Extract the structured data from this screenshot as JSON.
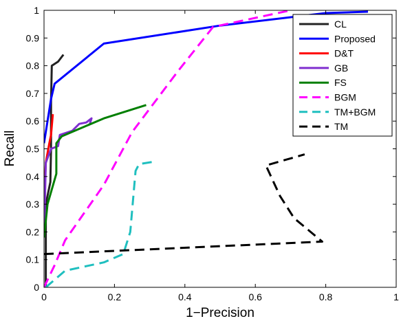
{
  "chart_data": {
    "type": "line",
    "xlabel": "1−Precision",
    "ylabel": "Recall",
    "xlim": [
      0,
      1
    ],
    "ylim": [
      0,
      1
    ],
    "xticks": [
      "0",
      "0.2",
      "0.4",
      "0.6",
      "0.8",
      "1"
    ],
    "yticks": [
      "0",
      "0.1",
      "0.2",
      "0.3",
      "0.4",
      "0.5",
      "0.6",
      "0.7",
      "0.8",
      "0.9",
      "1"
    ],
    "grid": false,
    "legend_position": "top-right",
    "series": [
      {
        "name": "CL",
        "color": "#222222",
        "dash": "solid",
        "points": [
          [
            0.005,
            0.0
          ],
          [
            0.005,
            0.3
          ],
          [
            0.018,
            0.38
          ],
          [
            0.02,
            0.5
          ],
          [
            0.02,
            0.67
          ],
          [
            0.022,
            0.8
          ],
          [
            0.04,
            0.815
          ],
          [
            0.055,
            0.84
          ]
        ]
      },
      {
        "name": "Proposed",
        "color": "#0000ff",
        "dash": "solid",
        "points": [
          [
            0.0,
            0.52
          ],
          [
            0.02,
            0.68
          ],
          [
            0.03,
            0.735
          ],
          [
            0.17,
            0.88
          ],
          [
            0.5,
            0.945
          ],
          [
            0.8,
            0.99
          ],
          [
            0.92,
            0.995
          ]
        ]
      },
      {
        "name": "D&T",
        "color": "#ff0000",
        "dash": "solid",
        "points": [
          [
            0.0,
            0.3
          ],
          [
            0.005,
            0.45
          ],
          [
            0.015,
            0.52
          ],
          [
            0.02,
            0.55
          ],
          [
            0.025,
            0.625
          ]
        ]
      },
      {
        "name": "GB",
        "color": "#7f2fcf",
        "dash": "solid",
        "points": [
          [
            0.0,
            0.18
          ],
          [
            0.005,
            0.45
          ],
          [
            0.02,
            0.5
          ],
          [
            0.04,
            0.51
          ],
          [
            0.045,
            0.55
          ],
          [
            0.08,
            0.565
          ],
          [
            0.1,
            0.59
          ],
          [
            0.12,
            0.595
          ],
          [
            0.135,
            0.61
          ],
          [
            0.13,
            0.59
          ]
        ]
      },
      {
        "name": "FS",
        "color": "#007f00",
        "dash": "solid",
        "points": [
          [
            0.0,
            0.18
          ],
          [
            0.01,
            0.3
          ],
          [
            0.035,
            0.41
          ],
          [
            0.035,
            0.52
          ],
          [
            0.05,
            0.545
          ],
          [
            0.17,
            0.61
          ],
          [
            0.29,
            0.658
          ]
        ]
      },
      {
        "name": "BGM",
        "color": "#ff00ff",
        "dash": "dashed",
        "points": [
          [
            0.0,
            0.0
          ],
          [
            0.03,
            0.08
          ],
          [
            0.06,
            0.17
          ],
          [
            0.17,
            0.37
          ],
          [
            0.25,
            0.56
          ],
          [
            0.38,
            0.78
          ],
          [
            0.48,
            0.94
          ],
          [
            0.7,
            1.0
          ]
        ]
      },
      {
        "name": "TM+BGM",
        "color": "#1fbfbf",
        "dash": "dashed",
        "points": [
          [
            0.005,
            0.0
          ],
          [
            0.06,
            0.06
          ],
          [
            0.17,
            0.09
          ],
          [
            0.225,
            0.12
          ],
          [
            0.245,
            0.2
          ],
          [
            0.255,
            0.35
          ],
          [
            0.26,
            0.42
          ],
          [
            0.27,
            0.445
          ],
          [
            0.32,
            0.455
          ]
        ]
      },
      {
        "name": "TM",
        "color": "#000000",
        "dash": "dashed",
        "points": [
          [
            0.0,
            0.12
          ],
          [
            0.79,
            0.165
          ],
          [
            0.71,
            0.25
          ],
          [
            0.67,
            0.33
          ],
          [
            0.63,
            0.44
          ],
          [
            0.74,
            0.48
          ]
        ]
      }
    ]
  }
}
